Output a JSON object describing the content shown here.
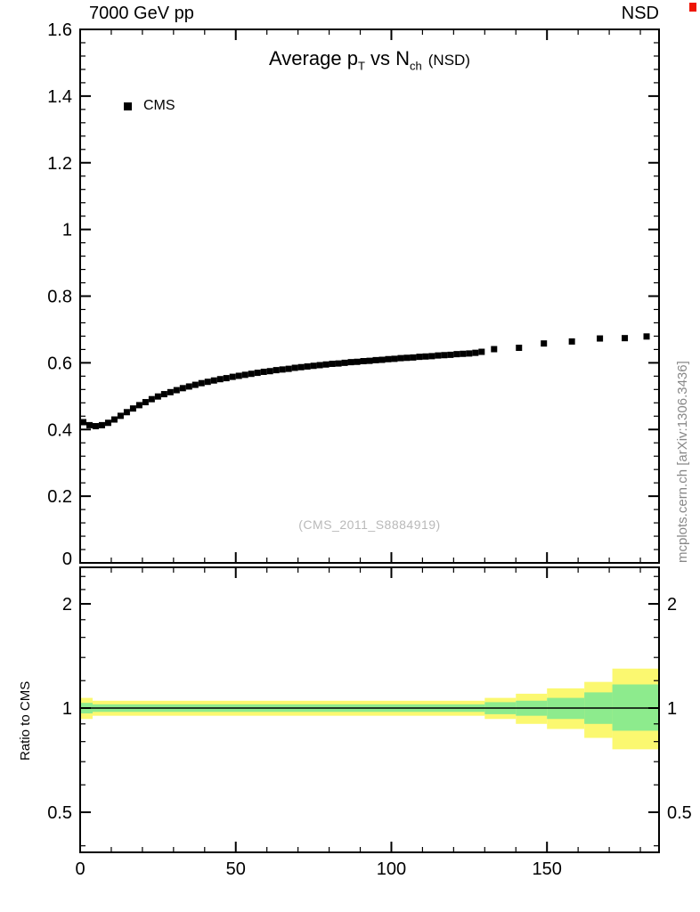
{
  "header": {
    "top_left": "7000 GeV pp",
    "top_right": "NSD"
  },
  "title_parts": {
    "main": "Average p",
    "sub1": "T",
    "mid": " vs N",
    "sub2": "ch",
    "suffix": "(NSD)"
  },
  "legend": {
    "label": "CMS",
    "marker": "filled-square"
  },
  "watermark": "(CMS_2011_S8884919)",
  "side_label": "mcplots.cern.ch [arXiv:1306.3436]",
  "ratio_ylabel": "Ratio to CMS",
  "colors": {
    "marker": "#000000",
    "axis": "#000000",
    "band_outer": "#fbf870",
    "band_inner": "#8deb8d",
    "watermark": "#b9b9b9",
    "side_label": "#888888",
    "corner_mark": "#ee1505"
  },
  "chart_data": [
    {
      "type": "scatter",
      "title": "Average pT vs Nch (NSD)",
      "xlabel": "",
      "ylabel": "",
      "xlim": [
        0,
        186
      ],
      "ylim": [
        0,
        1.6
      ],
      "xticks": [
        0,
        50,
        100,
        150
      ],
      "xtick_labels": [
        "0",
        "50",
        "100",
        "150"
      ],
      "x_minor_step": 10,
      "yticks": [
        0,
        0.2,
        0.4,
        0.6,
        0.8,
        1,
        1.2,
        1.4,
        1.6
      ],
      "ytick_labels": [
        "0",
        "0.2",
        "0.4",
        "0.6",
        "0.8",
        "1",
        "1.2",
        "1.4",
        "1.6"
      ],
      "y_minor_step": 0.04,
      "grid": false,
      "legend_position": "top-left",
      "series": [
        {
          "name": "CMS",
          "marker": "square",
          "color": "#000000",
          "x": [
            1,
            3,
            5,
            7,
            9,
            11,
            13,
            15,
            17,
            19,
            21,
            23,
            25,
            27,
            29,
            31,
            33,
            35,
            37,
            39,
            41,
            43,
            45,
            47,
            49,
            51,
            53,
            55,
            57,
            59,
            61,
            63,
            65,
            67,
            69,
            71,
            73,
            75,
            77,
            79,
            81,
            83,
            85,
            87,
            89,
            91,
            93,
            95,
            97,
            99,
            101,
            103,
            105,
            107,
            109,
            111,
            113,
            115,
            117,
            119,
            121,
            123,
            125,
            127,
            129,
            133,
            141,
            149,
            158,
            167,
            175,
            182
          ],
          "y": [
            0.422,
            0.413,
            0.41,
            0.413,
            0.42,
            0.43,
            0.441,
            0.452,
            0.463,
            0.473,
            0.482,
            0.491,
            0.499,
            0.506,
            0.512,
            0.518,
            0.524,
            0.529,
            0.534,
            0.539,
            0.543,
            0.547,
            0.551,
            0.554,
            0.558,
            0.561,
            0.564,
            0.567,
            0.57,
            0.573,
            0.575,
            0.578,
            0.58,
            0.582,
            0.585,
            0.587,
            0.589,
            0.591,
            0.593,
            0.595,
            0.597,
            0.598,
            0.6,
            0.602,
            0.603,
            0.605,
            0.606,
            0.608,
            0.609,
            0.611,
            0.612,
            0.614,
            0.615,
            0.616,
            0.618,
            0.619,
            0.62,
            0.622,
            0.623,
            0.624,
            0.626,
            0.627,
            0.628,
            0.63,
            0.633,
            0.641,
            0.645,
            0.658,
            0.664,
            0.673,
            0.674,
            0.679
          ]
        }
      ]
    },
    {
      "type": "band",
      "ylabel": "Ratio to CMS",
      "yscale": "log",
      "xlim": [
        0,
        186
      ],
      "ylim": [
        0.383,
        2.55
      ],
      "yticks": [
        0.5,
        1,
        2
      ],
      "ytick_labels": [
        "0.5",
        "1",
        "2"
      ],
      "ytick_minors": [
        0.4,
        0.6,
        0.7,
        0.8,
        0.9,
        1.2,
        1.4,
        1.6,
        1.8,
        2.2,
        2.4
      ],
      "xticks": [
        0,
        50,
        100,
        150
      ],
      "xtick_labels": [
        "0",
        "50",
        "100",
        "150"
      ],
      "x_minor_step": 10,
      "reference_line": 1,
      "bins": [
        {
          "x0": 0,
          "x1": 4,
          "outer_lo": 0.93,
          "outer_hi": 1.07,
          "inner_lo": 0.965,
          "inner_hi": 1.035
        },
        {
          "x0": 4,
          "x1": 130,
          "outer_lo": 0.95,
          "outer_hi": 1.05,
          "inner_lo": 0.975,
          "inner_hi": 1.025
        },
        {
          "x0": 130,
          "x1": 140,
          "outer_lo": 0.93,
          "outer_hi": 1.07,
          "inner_lo": 0.96,
          "inner_hi": 1.04
        },
        {
          "x0": 140,
          "x1": 150,
          "outer_lo": 0.9,
          "outer_hi": 1.1,
          "inner_lo": 0.95,
          "inner_hi": 1.05
        },
        {
          "x0": 150,
          "x1": 162,
          "outer_lo": 0.87,
          "outer_hi": 1.14,
          "inner_lo": 0.93,
          "inner_hi": 1.07
        },
        {
          "x0": 162,
          "x1": 171,
          "outer_lo": 0.82,
          "outer_hi": 1.19,
          "inner_lo": 0.9,
          "inner_hi": 1.11
        },
        {
          "x0": 171,
          "x1": 186,
          "outer_lo": 0.76,
          "outer_hi": 1.3,
          "inner_lo": 0.86,
          "inner_hi": 1.17
        }
      ]
    }
  ]
}
